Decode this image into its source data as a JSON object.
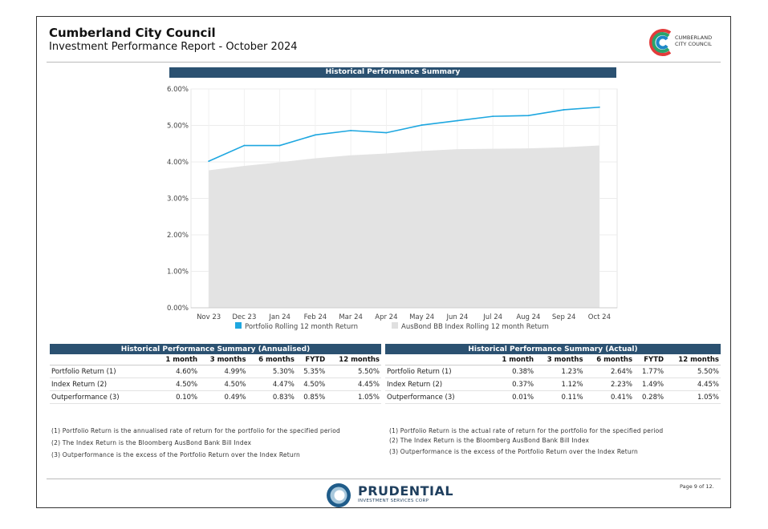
{
  "header": {
    "title": "Cumberland City Council",
    "subtitle": "Investment Performance Report - October 2024",
    "logo_line1": "CUMBERLAND",
    "logo_line2": "CITY COUNCIL"
  },
  "chart_banner": "Historical Performance Summary",
  "chart_data": {
    "type": "line",
    "title": "Historical Performance Summary",
    "categories": [
      "Nov 23",
      "Dec 23",
      "Jan 24",
      "Feb 24",
      "Mar 24",
      "Apr 24",
      "May 24",
      "Jun 24",
      "Jul 24",
      "Aug 24",
      "Sep 24",
      "Oct 24"
    ],
    "y_ticks": [
      "0.00%",
      "1.00%",
      "2.00%",
      "3.00%",
      "4.00%",
      "5.00%",
      "6.00%"
    ],
    "ylim": [
      0,
      6
    ],
    "series": [
      {
        "name": "Portfolio Rolling 12 month Return",
        "kind": "line",
        "color": "#1ea7e0",
        "values": [
          4.02,
          4.45,
          4.45,
          4.74,
          4.86,
          4.8,
          5.01,
          5.13,
          5.25,
          5.27,
          5.43,
          5.5
        ]
      },
      {
        "name": "AusBond BB Index Rolling 12 month Return",
        "kind": "area",
        "color": "#e3e3e3",
        "values": [
          3.77,
          3.89,
          3.99,
          4.1,
          4.18,
          4.23,
          4.3,
          4.35,
          4.36,
          4.37,
          4.4,
          4.45
        ]
      }
    ],
    "legend_position": "bottom",
    "grid": true
  },
  "table_annualised": {
    "banner": "Historical Performance Summary (Annualised)",
    "columns": [
      "",
      "1 month",
      "3 months",
      "6 months",
      "FYTD",
      "12 months"
    ],
    "rows": [
      [
        "Portfolio Return (1)",
        "4.60%",
        "4.99%",
        "5.30%",
        "5.35%",
        "5.50%"
      ],
      [
        "Index Return (2)",
        "4.50%",
        "4.50%",
        "4.47%",
        "4.50%",
        "4.45%"
      ],
      [
        "Outperformance (3)",
        "0.10%",
        "0.49%",
        "0.83%",
        "0.85%",
        "1.05%"
      ]
    ]
  },
  "table_actual": {
    "banner": "Historical Performance Summary (Actual)",
    "columns": [
      "",
      "1 month",
      "3 months",
      "6 months",
      "FYTD",
      "12 months"
    ],
    "rows": [
      [
        "Portfolio Return (1)",
        "0.38%",
        "1.23%",
        "2.64%",
        "1.77%",
        "5.50%"
      ],
      [
        "Index Return (2)",
        "0.37%",
        "1.12%",
        "2.23%",
        "1.49%",
        "4.45%"
      ],
      [
        "Outperformance (3)",
        "0.01%",
        "0.11%",
        "0.41%",
        "0.28%",
        "1.05%"
      ]
    ]
  },
  "notes_left": [
    "(1) Portfolio Return is the annualised rate of return for the portfolio for the specified period",
    "(2) The Index Return is the Bloomberg AusBond Bank Bill Index",
    "(3) Outperformance is the excess of the Portfolio Return over the Index Return"
  ],
  "notes_right": [
    "(1) Portfolio Return is the actual rate of return for the portfolio for the specified period",
    "(2) The Index Return is the Bloomberg AusBond Bank Bill Index",
    "(3) Outperformance is the excess of the Portfolio Return over the Index Return"
  ],
  "footer": {
    "brand_name": "PRUDENTIAL",
    "brand_sub": "INVESTMENT SERVICES CORP",
    "page": "Page 9 of 12."
  }
}
